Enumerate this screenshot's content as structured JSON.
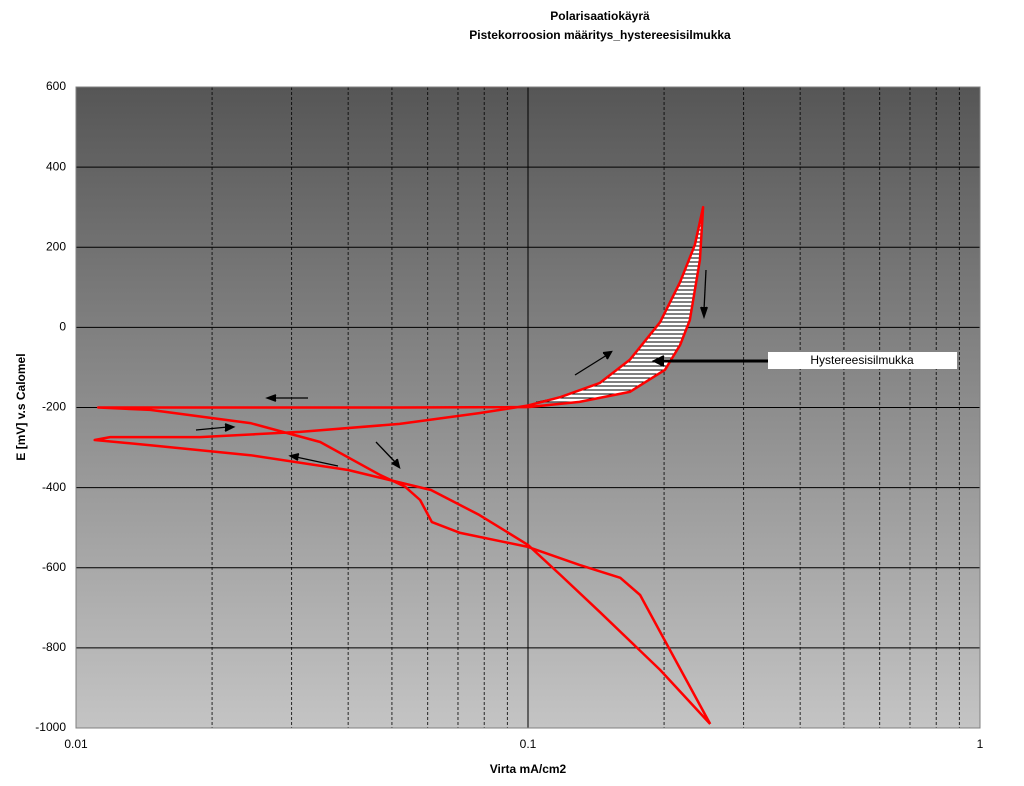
{
  "chart_data": {
    "type": "line",
    "title": "Polarisaatiokäyrä",
    "subtitle": "Pistekorroosion määritys_hystereesisilmukka",
    "x_label": "Virta mA/cm2",
    "y_label": "E [mV] v.s Calomel",
    "annotation": "Hystereesisilmukka",
    "log_x": true,
    "grid": true,
    "xlim": [
      0.01,
      1
    ],
    "xticks": [
      0.01,
      0.1,
      1
    ],
    "ylim": [
      -1000,
      600
    ],
    "yticks": [
      600,
      400,
      200,
      0,
      -200,
      -400,
      -600,
      -800,
      -1000
    ],
    "series": [
      {
        "color": "#ff0000",
        "x": [
          0.253,
          0.196,
          0.144,
          0.118,
          0.1,
          0.078,
          0.061,
          0.04,
          0.0243,
          0.0146,
          0.011,
          0.0119,
          0.0188,
          0.0313,
          0.052,
          0.078,
          0.1,
          0.118,
          0.144,
          0.168,
          0.196,
          0.217,
          0.234,
          0.244,
          0.24,
          0.228,
          0.217,
          0.201,
          0.168,
          0.13,
          0.1,
          0.052,
          0.0188,
          0.0112,
          0.0146,
          0.0243,
          0.0347,
          0.047,
          0.0535,
          0.0577,
          0.0613,
          0.0708,
          0.1,
          0.13,
          0.16,
          0.177,
          0.206,
          0.253
        ],
        "values": [
          -990,
          -855,
          -710,
          -618,
          -543,
          -468,
          -406,
          -356,
          -319,
          -294,
          -281,
          -274,
          -274,
          -261,
          -241,
          -214,
          -195,
          -174,
          -139,
          -81,
          13,
          113,
          206,
          300,
          168,
          18,
          -44,
          -106,
          -161,
          -186,
          -199,
          -200,
          -200,
          -200,
          -206,
          -239,
          -286,
          -368,
          -398,
          -431,
          -486,
          -513,
          -548,
          -593,
          -625,
          -668,
          -805,
          -990
        ]
      }
    ]
  }
}
